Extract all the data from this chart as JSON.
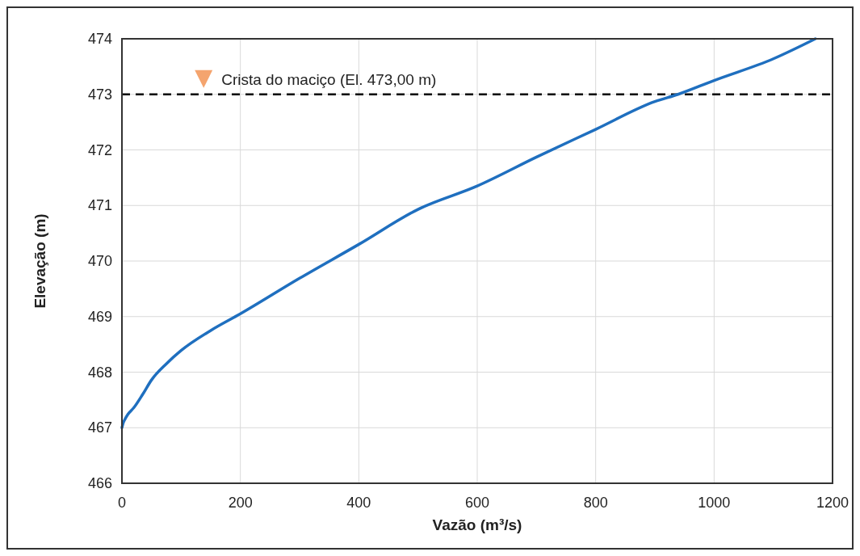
{
  "chart_data": {
    "type": "line",
    "xlabel": "Vazão (m³/s)",
    "ylabel": "Elevação (m)",
    "xlim": [
      0,
      1200
    ],
    "xticks": [
      0,
      200,
      400,
      600,
      800,
      1000,
      1200
    ],
    "ylim": [
      466,
      474
    ],
    "yticks": [
      466,
      467,
      468,
      469,
      470,
      471,
      472,
      473,
      474
    ],
    "grid": true,
    "marker": "none",
    "line_style": "solid",
    "ref_lines": [
      {
        "axis": "y",
        "value": 473,
        "label": "Crista do maciço (El. 473,00 m)",
        "color": "#000000",
        "line_style": "dashed"
      }
    ],
    "series": [
      {
        "color": "#1f6fbf",
        "x": [
          0,
          2,
          5,
          10,
          20,
          35,
          50,
          75,
          100,
          150,
          200,
          300,
          400,
          500,
          600,
          700,
          800,
          900,
          939,
          1000,
          1100,
          1171
        ],
        "values": [
          467,
          467.08,
          467.15,
          467.24,
          467.36,
          467.6,
          467.86,
          468.15,
          468.39,
          468.75,
          469.05,
          469.69,
          470.3,
          470.93,
          471.35,
          471.87,
          472.37,
          472.87,
          473,
          473.25,
          473.64,
          474
        ]
      }
    ]
  }
}
